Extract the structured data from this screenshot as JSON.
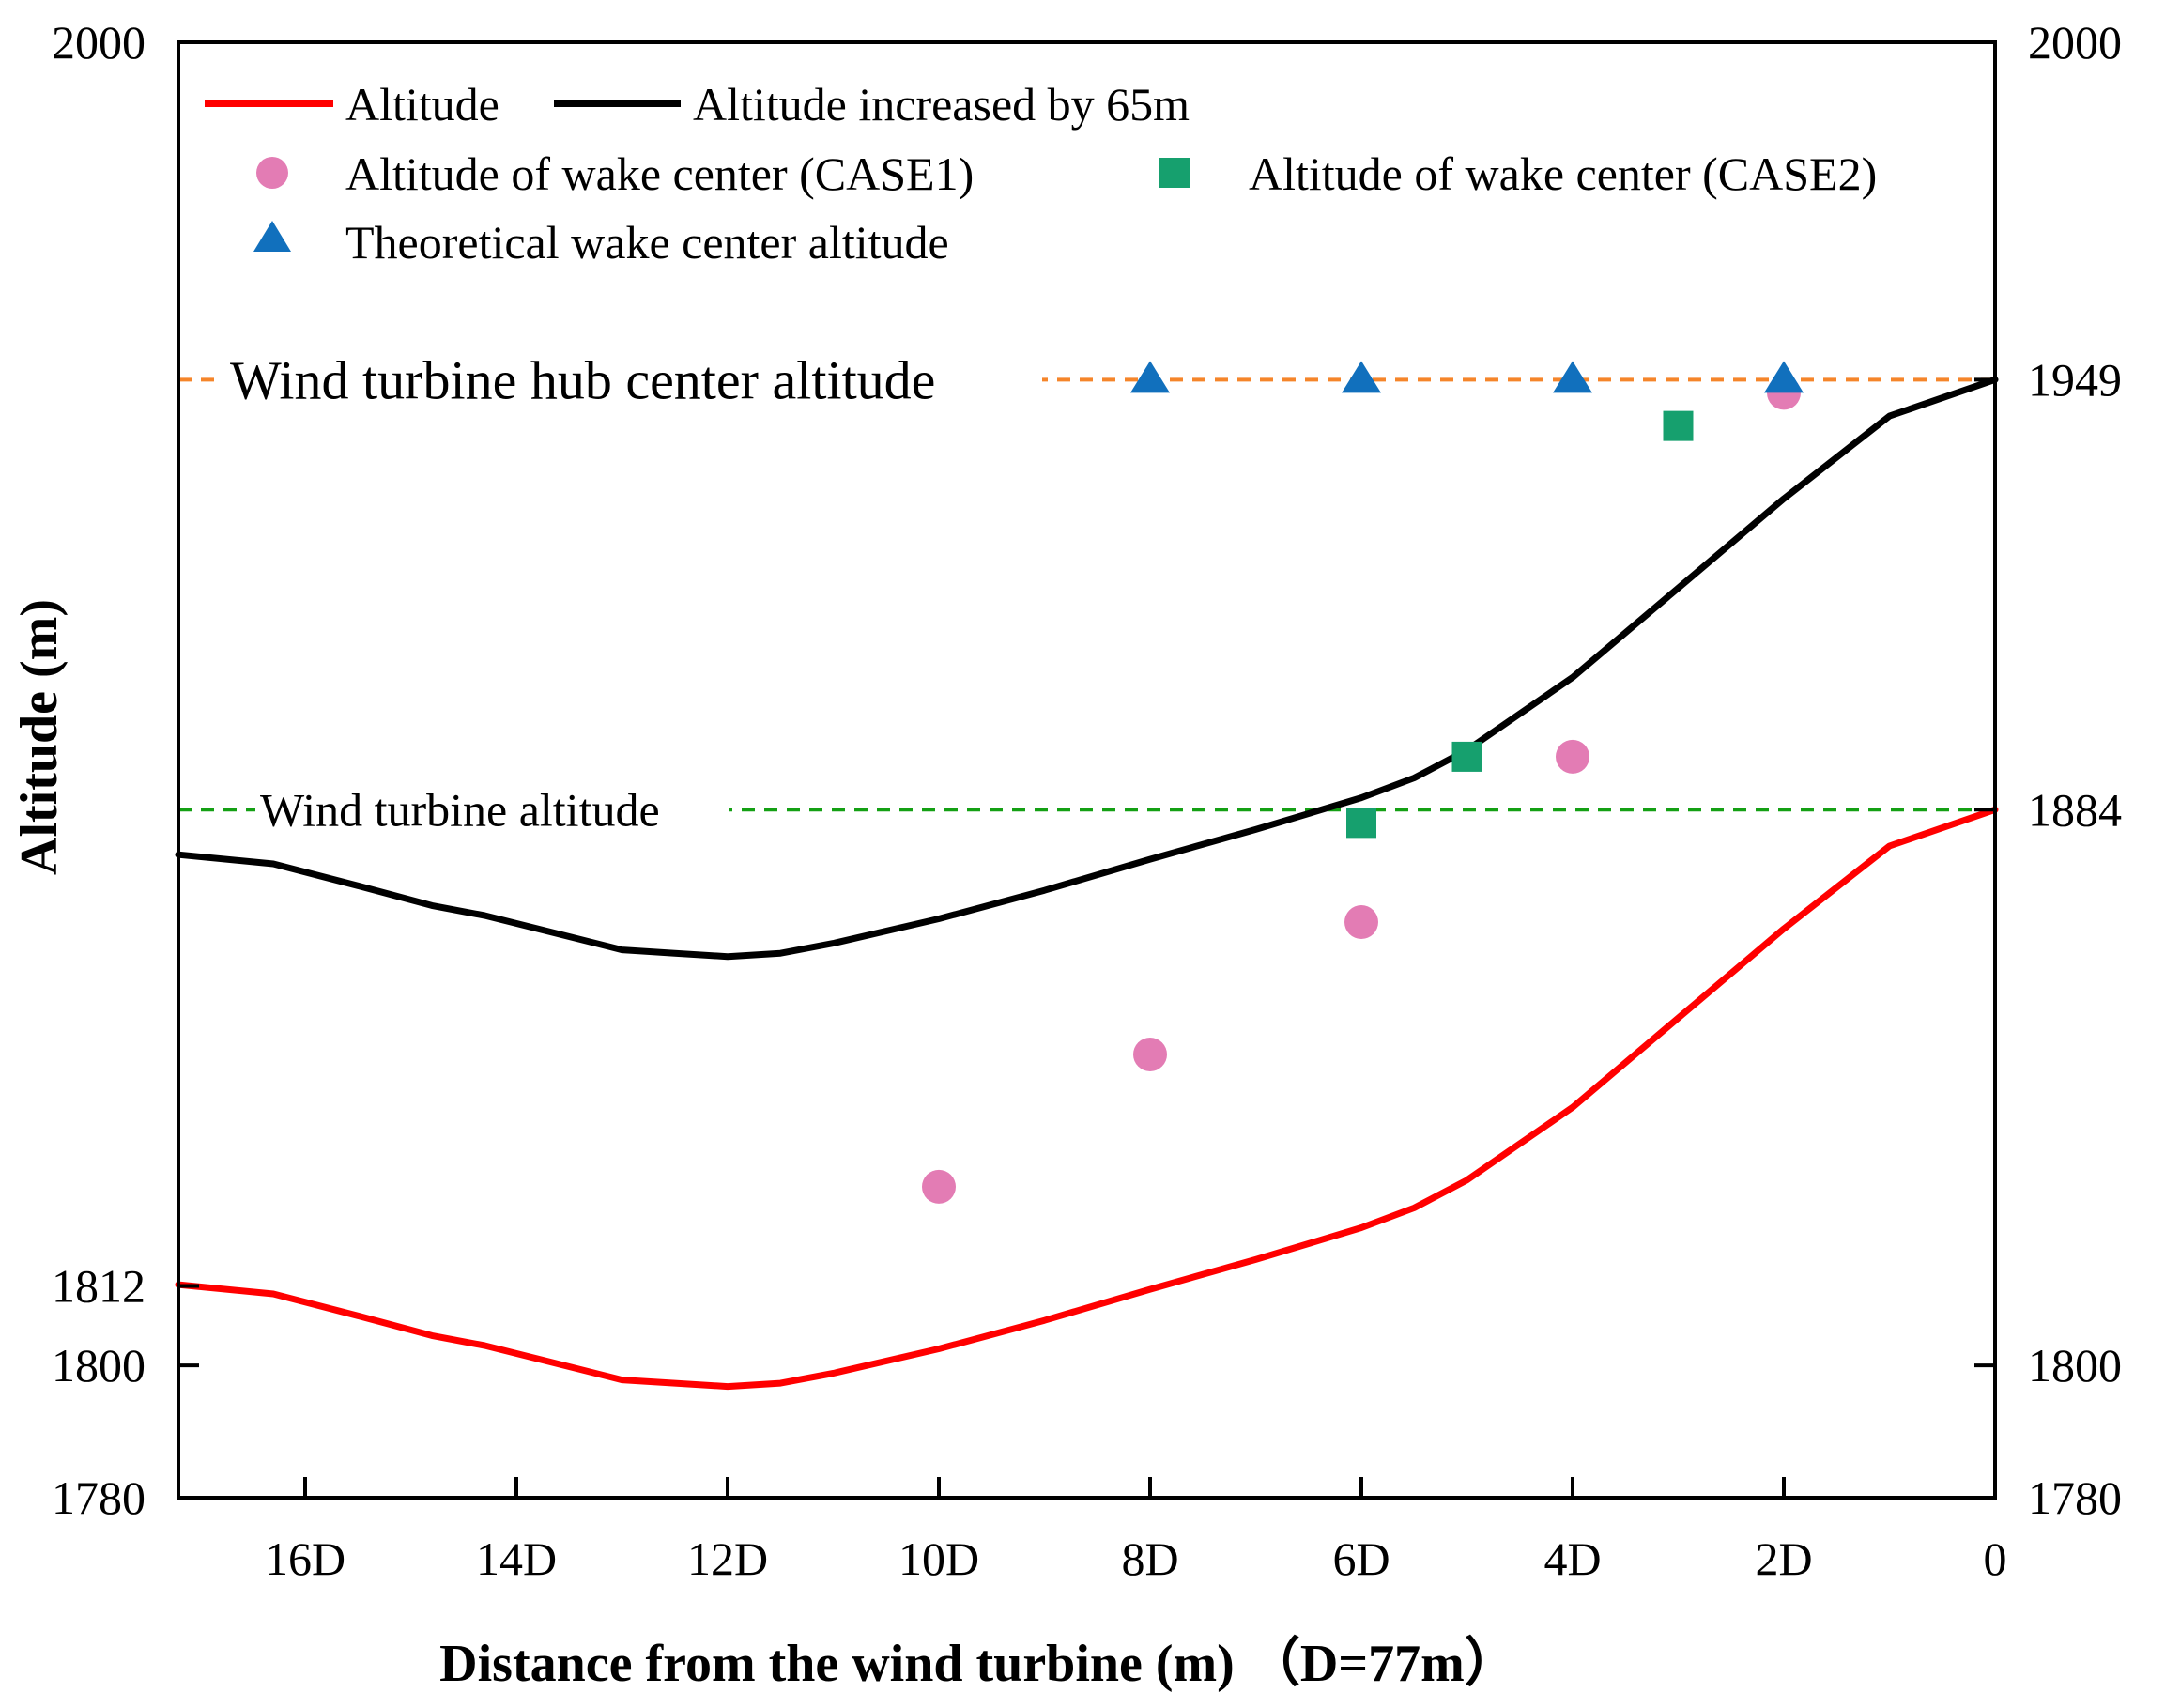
{
  "chart_data": {
    "type": "line",
    "title": "",
    "xlabel": "Distance from the wind turbine (m)  （D=77m）",
    "ylabel": "Altitude (m)",
    "xlim": [
      17.2,
      0
    ],
    "ylim": [
      1780,
      2000
    ],
    "x_ticks": [
      {
        "value": 16,
        "label": "16D"
      },
      {
        "value": 14,
        "label": "14D"
      },
      {
        "value": 12,
        "label": "12D"
      },
      {
        "value": 10,
        "label": "10D"
      },
      {
        "value": 8,
        "label": "8D"
      },
      {
        "value": 6,
        "label": "6D"
      },
      {
        "value": 4,
        "label": "4D"
      },
      {
        "value": 2,
        "label": "2D"
      },
      {
        "value": 0,
        "label": "0"
      }
    ],
    "y_ticks_left": [
      {
        "value": 2000,
        "label": "2000"
      },
      {
        "value": 1812,
        "label": "1812"
      },
      {
        "value": 1800,
        "label": "1800"
      },
      {
        "value": 1780,
        "label": "1780"
      }
    ],
    "y_ticks_right": [
      {
        "value": 2000,
        "label": "2000"
      },
      {
        "value": 1949,
        "label": "1949"
      },
      {
        "value": 1884,
        "label": "1884"
      },
      {
        "value": 1800,
        "label": "1800"
      },
      {
        "value": 1780,
        "label": "1780"
      }
    ],
    "series": [
      {
        "name": "Altitude",
        "type": "line",
        "color": "#ff0000",
        "points": [
          [
            17.2,
            1812.2
          ],
          [
            16.3,
            1810.8
          ],
          [
            15.5,
            1807.5
          ],
          [
            14.8,
            1804.5
          ],
          [
            14.3,
            1803
          ],
          [
            13.5,
            1799.8
          ],
          [
            13,
            1797.8
          ],
          [
            12.5,
            1797.3
          ],
          [
            12,
            1796.8
          ],
          [
            11.5,
            1797.3
          ],
          [
            11,
            1798.8
          ],
          [
            10,
            1802.5
          ],
          [
            9,
            1806.8
          ],
          [
            8,
            1811.5
          ],
          [
            7,
            1816
          ],
          [
            6,
            1820.8
          ],
          [
            5.5,
            1823.8
          ],
          [
            5,
            1828
          ],
          [
            4,
            1839
          ],
          [
            3,
            1852.5
          ],
          [
            2,
            1866
          ],
          [
            1,
            1878.5
          ],
          [
            0,
            1884
          ]
        ]
      },
      {
        "name": "Altitude increased by 65m",
        "type": "line",
        "color": "#000000",
        "points": [
          [
            17.2,
            1877.2
          ],
          [
            16.3,
            1875.8
          ],
          [
            15.5,
            1872.5
          ],
          [
            14.8,
            1869.5
          ],
          [
            14.3,
            1868
          ],
          [
            13.5,
            1864.8
          ],
          [
            13,
            1862.8
          ],
          [
            12.5,
            1862.3
          ],
          [
            12,
            1861.8
          ],
          [
            11.5,
            1862.3
          ],
          [
            11,
            1863.8
          ],
          [
            10,
            1867.5
          ],
          [
            9,
            1871.8
          ],
          [
            8,
            1876.5
          ],
          [
            7,
            1881
          ],
          [
            6,
            1885.8
          ],
          [
            5.5,
            1888.8
          ],
          [
            5,
            1893
          ],
          [
            4,
            1904
          ],
          [
            3,
            1917.5
          ],
          [
            2,
            1931
          ],
          [
            1,
            1943.5
          ],
          [
            0,
            1949
          ]
        ]
      },
      {
        "name": "Altitude of wake center (CASE1)",
        "type": "scatter",
        "marker": "circle",
        "color": "#e37cb4",
        "points": [
          [
            10,
            1827
          ],
          [
            8,
            1847
          ],
          [
            6,
            1867
          ],
          [
            4,
            1892
          ],
          [
            2,
            1947
          ]
        ]
      },
      {
        "name": "Altitude of wake center (CASE2)",
        "type": "scatter",
        "marker": "square",
        "color": "#16a06e",
        "points": [
          [
            6,
            1882
          ],
          [
            5,
            1892
          ],
          [
            3,
            1942
          ]
        ]
      },
      {
        "name": "Theoretical wake center altitude",
        "type": "scatter",
        "marker": "triangle",
        "color": "#1170bd",
        "points": [
          [
            8,
            1949
          ],
          [
            6,
            1949
          ],
          [
            4,
            1949
          ],
          [
            2,
            1949
          ]
        ]
      }
    ],
    "reference_lines": [
      {
        "name": "Wind turbine hub center altitude",
        "value": 1949,
        "color": "#f5852a",
        "style": "dashed"
      },
      {
        "name": "Wind turbine altitude",
        "value": 1884,
        "color": "#14a014",
        "style": "dashed"
      }
    ],
    "legend": {
      "position": "top-left",
      "columns": 2
    }
  }
}
